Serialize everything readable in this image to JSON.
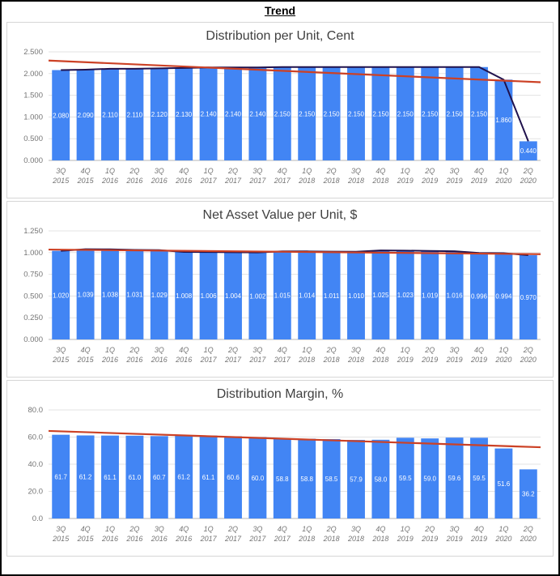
{
  "header": {
    "title": "Trend"
  },
  "colors": {
    "bar": "#4285f4",
    "trend_line": "#cc4125",
    "value_line": "#20124d",
    "grid": "#e3e3e3",
    "baseline": "#b7b7b7",
    "axis_text": "#757575",
    "bar_label": "#ffffff",
    "title_text": "#404040"
  },
  "chart_data": [
    {
      "type": "bar",
      "title": "Distribution per Unit, Cent",
      "categories": [
        [
          "3Q",
          "2015"
        ],
        [
          "4Q",
          "2015"
        ],
        [
          "1Q",
          "2016"
        ],
        [
          "2Q",
          "2016"
        ],
        [
          "3Q",
          "2016"
        ],
        [
          "4Q",
          "2016"
        ],
        [
          "1Q",
          "2017"
        ],
        [
          "2Q",
          "2017"
        ],
        [
          "3Q",
          "2017"
        ],
        [
          "4Q",
          "2017"
        ],
        [
          "1Q",
          "2018"
        ],
        [
          "2Q",
          "2018"
        ],
        [
          "3Q",
          "2018"
        ],
        [
          "4Q",
          "2018"
        ],
        [
          "1Q",
          "2019"
        ],
        [
          "2Q",
          "2019"
        ],
        [
          "3Q",
          "2019"
        ],
        [
          "4Q",
          "2019"
        ],
        [
          "1Q",
          "2020"
        ],
        [
          "2Q",
          "2020"
        ]
      ],
      "values": [
        2.08,
        2.09,
        2.11,
        2.11,
        2.12,
        2.13,
        2.14,
        2.14,
        2.14,
        2.15,
        2.15,
        2.15,
        2.15,
        2.15,
        2.15,
        2.15,
        2.15,
        2.15,
        1.86,
        0.44
      ],
      "value_labels": [
        "2.080",
        "2.090",
        "2.110",
        "2.110",
        "2.120",
        "2.130",
        "2.140",
        "2.140",
        "2.140",
        "2.150",
        "2.150",
        "2.150",
        "2.150",
        "2.150",
        "2.150",
        "2.150",
        "2.150",
        "2.150",
        "1.860",
        "0.440"
      ],
      "ylim": [
        0,
        2.5
      ],
      "ytick_labels": [
        "0.000",
        "0.500",
        "1.000",
        "1.500",
        "2.000",
        "2.500"
      ],
      "grid": true,
      "legend": "none",
      "value_line": true,
      "trend": {
        "start": 2.3,
        "end": 1.8
      }
    },
    {
      "type": "bar",
      "title": "Net Asset Value per Unit, $",
      "categories": [
        [
          "3Q",
          "2015"
        ],
        [
          "4Q",
          "2015"
        ],
        [
          "1Q",
          "2016"
        ],
        [
          "2Q",
          "2016"
        ],
        [
          "3Q",
          "2016"
        ],
        [
          "4Q",
          "2016"
        ],
        [
          "1Q",
          "2017"
        ],
        [
          "2Q",
          "2017"
        ],
        [
          "3Q",
          "2017"
        ],
        [
          "4Q",
          "2017"
        ],
        [
          "1Q",
          "2018"
        ],
        [
          "2Q",
          "2018"
        ],
        [
          "3Q",
          "2018"
        ],
        [
          "4Q",
          "2018"
        ],
        [
          "1Q",
          "2019"
        ],
        [
          "2Q",
          "2019"
        ],
        [
          "3Q",
          "2019"
        ],
        [
          "4Q",
          "2019"
        ],
        [
          "1Q",
          "2020"
        ],
        [
          "2Q",
          "2020"
        ]
      ],
      "values": [
        1.02,
        1.039,
        1.038,
        1.031,
        1.029,
        1.008,
        1.006,
        1.004,
        1.002,
        1.015,
        1.014,
        1.011,
        1.01,
        1.025,
        1.023,
        1.019,
        1.016,
        0.996,
        0.994,
        0.97
      ],
      "value_labels": [
        "1.020",
        "1.039",
        "1.038",
        "1.031",
        "1.029",
        "1.008",
        "1.006",
        "1.004",
        "1.002",
        "1.015",
        "1.014",
        "1.011",
        "1.010",
        "1.025",
        "1.023",
        "1.019",
        "1.016",
        "0.996",
        "0.994",
        "0.970"
      ],
      "ylim": [
        0,
        1.25
      ],
      "ytick_labels": [
        "0.000",
        "0.250",
        "0.500",
        "0.750",
        "1.000",
        "1.250"
      ],
      "grid": true,
      "legend": "none",
      "value_line": true,
      "trend": {
        "start": 1.035,
        "end": 0.982
      }
    },
    {
      "type": "bar",
      "title": "Distribution Margin, %",
      "categories": [
        [
          "3Q",
          "2015"
        ],
        [
          "4Q",
          "2015"
        ],
        [
          "1Q",
          "2016"
        ],
        [
          "2Q",
          "2016"
        ],
        [
          "3Q",
          "2016"
        ],
        [
          "4Q",
          "2016"
        ],
        [
          "1Q",
          "2017"
        ],
        [
          "2Q",
          "2017"
        ],
        [
          "3Q",
          "2017"
        ],
        [
          "4Q",
          "2017"
        ],
        [
          "1Q",
          "2018"
        ],
        [
          "2Q",
          "2018"
        ],
        [
          "3Q",
          "2018"
        ],
        [
          "4Q",
          "2018"
        ],
        [
          "1Q",
          "2019"
        ],
        [
          "2Q",
          "2019"
        ],
        [
          "3Q",
          "2019"
        ],
        [
          "4Q",
          "2019"
        ],
        [
          "1Q",
          "2020"
        ],
        [
          "2Q",
          "2020"
        ]
      ],
      "values": [
        61.7,
        61.2,
        61.1,
        61.0,
        60.7,
        61.2,
        61.1,
        60.6,
        60.0,
        58.8,
        58.8,
        58.5,
        57.9,
        58.0,
        59.5,
        59.0,
        59.6,
        59.5,
        51.6,
        36.2
      ],
      "value_labels": [
        "61.7",
        "61.2",
        "61.1",
        "61.0",
        "60.7",
        "61.2",
        "61.1",
        "60.6",
        "60.0",
        "58.8",
        "58.8",
        "58.5",
        "57.9",
        "58.0",
        "59.5",
        "59.0",
        "59.6",
        "59.5",
        "51.6",
        "36.2"
      ],
      "ylim": [
        0,
        80
      ],
      "ytick_labels": [
        "0.0",
        "20.0",
        "40.0",
        "60.0",
        "80.0"
      ],
      "grid": true,
      "legend": "none",
      "value_line": false,
      "trend": {
        "start": 64.5,
        "end": 52.5
      }
    }
  ]
}
